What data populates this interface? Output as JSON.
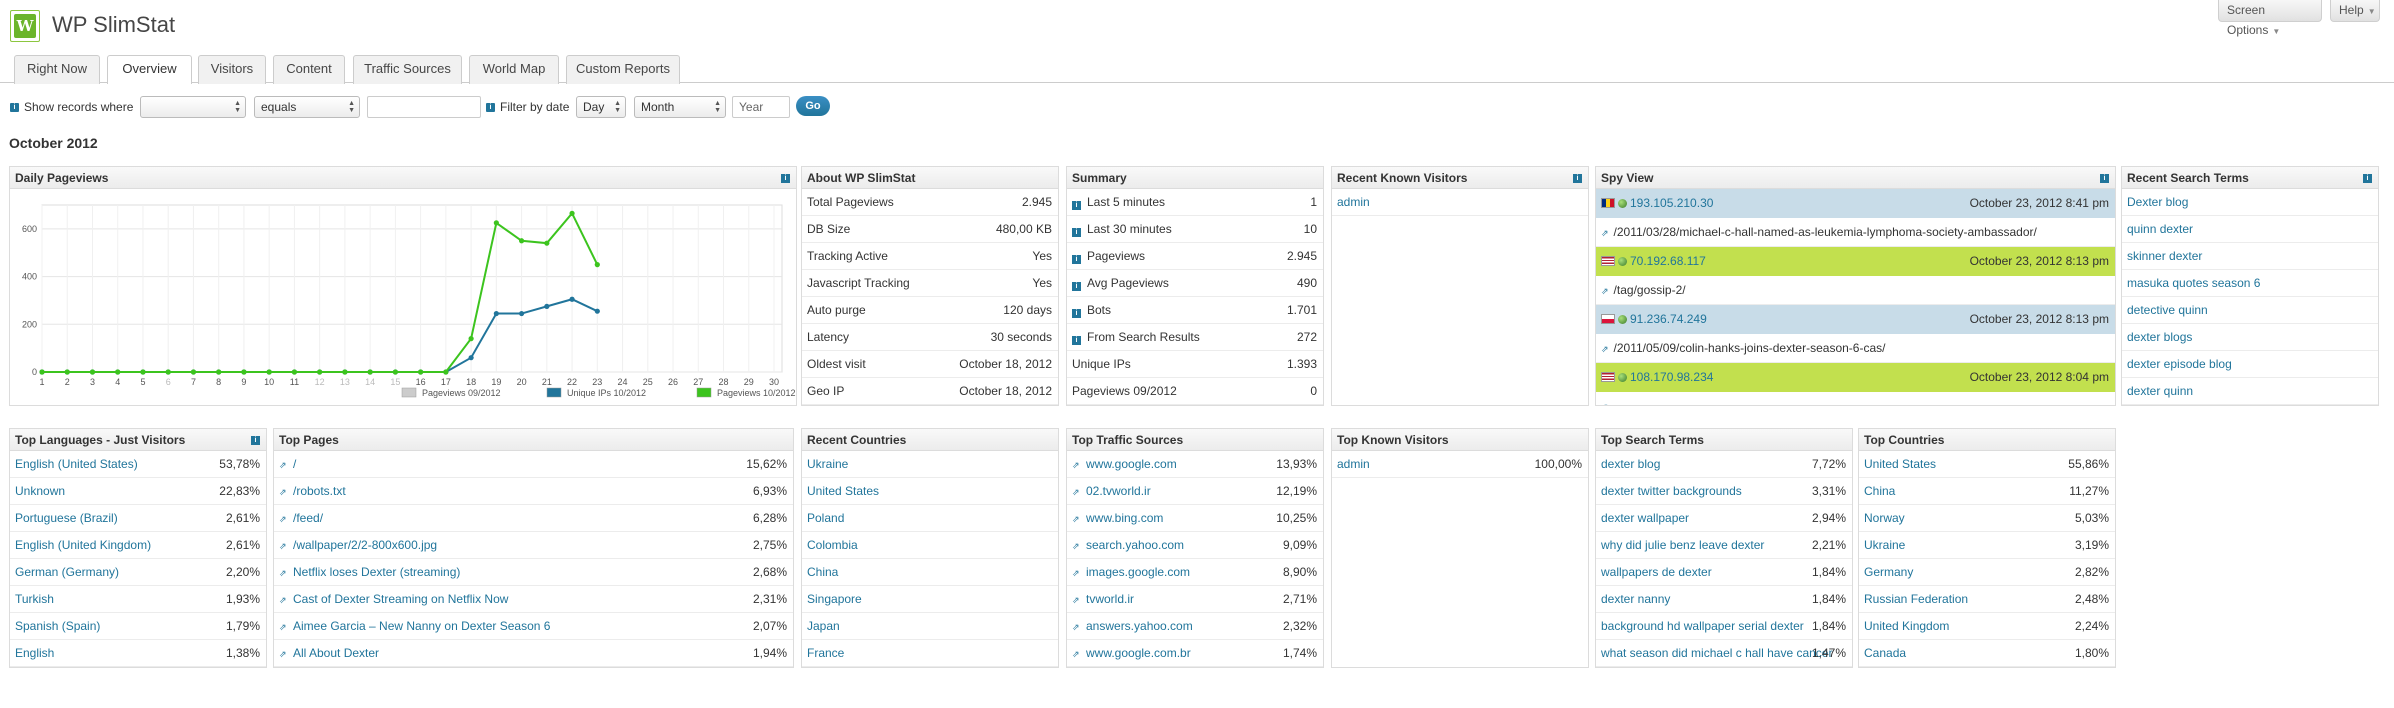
{
  "app": {
    "title": "WP SlimStat",
    "logo_letter": "W"
  },
  "top_buttons": {
    "screen_options": "Screen Options",
    "help": "Help"
  },
  "tabs": [
    "Right Now",
    "Overview",
    "Visitors",
    "Content",
    "Traffic Sources",
    "World Map",
    "Custom Reports"
  ],
  "active_tab": "Overview",
  "filter": {
    "show_records_label": "Show records where",
    "field_value": "",
    "operator_value": "equals",
    "text_value": "",
    "filter_by_date_label": "Filter by date",
    "day": "Day",
    "month": "Month",
    "year_placeholder": "Year",
    "go": "Go"
  },
  "period": "October 2012",
  "daily_pageviews": {
    "title": "Daily Pageviews"
  },
  "chart_data": {
    "type": "line",
    "title": "Daily Pageviews",
    "x": [
      1,
      2,
      3,
      4,
      5,
      6,
      7,
      8,
      9,
      10,
      11,
      12,
      13,
      14,
      15,
      16,
      17,
      18,
      19,
      20,
      21,
      22,
      23,
      24,
      25,
      26,
      27,
      28,
      29,
      30
    ],
    "x_tick_labels": [
      "1",
      "2",
      "3",
      "4",
      "5",
      "6",
      "7",
      "8",
      "9",
      "10",
      "11",
      "12",
      "13",
      "14",
      "15",
      "16",
      "17",
      "18",
      "19",
      "20",
      "21",
      "22",
      "23",
      "24",
      "25",
      "26",
      "27",
      "28",
      "29",
      "30"
    ],
    "ylim": [
      0,
      700
    ],
    "y_ticks": [
      0,
      200,
      400,
      600
    ],
    "grid": true,
    "legend_position": "bottom-right",
    "series": [
      {
        "name": "Pageviews 09/2012",
        "color": "#cccccc",
        "x": [],
        "values": []
      },
      {
        "name": "Unique IPs 10/2012",
        "color": "#21759b",
        "x": [
          1,
          2,
          3,
          4,
          5,
          6,
          7,
          8,
          9,
          10,
          11,
          12,
          13,
          14,
          15,
          16,
          17,
          18,
          19,
          20,
          21,
          22,
          23
        ],
        "values": [
          0,
          0,
          0,
          0,
          0,
          0,
          0,
          0,
          0,
          0,
          0,
          0,
          0,
          0,
          0,
          0,
          0,
          60,
          245,
          245,
          275,
          305,
          255
        ]
      },
      {
        "name": "Pageviews 10/2012",
        "color": "#3cc41e",
        "x": [
          1,
          2,
          3,
          4,
          5,
          6,
          7,
          8,
          9,
          10,
          11,
          12,
          13,
          14,
          15,
          16,
          17,
          18,
          19,
          20,
          21,
          22,
          23
        ],
        "values": [
          0,
          0,
          0,
          0,
          0,
          0,
          0,
          0,
          0,
          0,
          0,
          0,
          0,
          0,
          0,
          0,
          0,
          140,
          625,
          550,
          540,
          665,
          450
        ]
      }
    ]
  },
  "about": {
    "title": "About WP SlimStat",
    "rows": [
      {
        "label": "Total Pageviews",
        "value": "2.945"
      },
      {
        "label": "DB Size",
        "value": "480,00 KB"
      },
      {
        "label": "Tracking Active",
        "value": "Yes"
      },
      {
        "label": "Javascript Tracking",
        "value": "Yes"
      },
      {
        "label": "Auto purge",
        "value": "120 days"
      },
      {
        "label": "Latency",
        "value": "30 seconds"
      },
      {
        "label": "Oldest visit",
        "value": "October 18, 2012"
      },
      {
        "label": "Geo IP",
        "value": "October 18, 2012"
      }
    ]
  },
  "summary": {
    "title": "Summary",
    "rows": [
      {
        "label": "Last 5 minutes",
        "value": "1",
        "info": true
      },
      {
        "label": "Last 30 minutes",
        "value": "10",
        "info": true
      },
      {
        "label": "Pageviews",
        "value": "2.945",
        "info": true
      },
      {
        "label": "Avg Pageviews",
        "value": "490",
        "info": true
      },
      {
        "label": "Bots",
        "value": "1.701",
        "info": true
      },
      {
        "label": "From Search Results",
        "value": "272",
        "info": true
      },
      {
        "label": "Unique IPs",
        "value": "1.393",
        "info": false
      },
      {
        "label": "Pageviews 09/2012",
        "value": "0",
        "info": false
      }
    ]
  },
  "recent_known_visitors": {
    "title": "Recent Known Visitors",
    "rows": [
      "admin"
    ]
  },
  "spy_view": {
    "title": "Spy View",
    "entries": [
      {
        "ip": "193.105.210.30",
        "time": "October 23, 2012 8:41 pm",
        "url": "/2011/03/28/michael-c-hall-named-as-leukemia-lymphoma-society-ambassador/",
        "flag": "ro",
        "bg": "blue"
      },
      {
        "ip": "70.192.68.117",
        "time": "October 23, 2012 8:13 pm",
        "url": "/tag/gossip-2/",
        "flag": "us",
        "bg": "green"
      },
      {
        "ip": "91.236.74.249",
        "time": "October 23, 2012 8:13 pm",
        "url": "/2011/05/09/colin-hanks-joins-dexter-season-6-cas/",
        "flag": "pl",
        "bg": "blue"
      },
      {
        "ip": "108.170.98.234",
        "time": "October 23, 2012 8:04 pm",
        "url": "",
        "flag": "us",
        "bg": "green"
      }
    ]
  },
  "recent_search_terms": {
    "title": "Recent Search Terms",
    "rows": [
      "Dexter blog",
      "quinn dexter",
      "skinner dexter",
      "masuka quotes season 6",
      "detective quinn",
      "dexter blogs",
      "dexter episode blog",
      "dexter quinn"
    ]
  },
  "top_languages": {
    "title": "Top Languages - Just Visitors",
    "rows": [
      {
        "label": "English (United States)",
        "value": "53,78%"
      },
      {
        "label": "Unknown",
        "value": "22,83%"
      },
      {
        "label": "Portuguese (Brazil)",
        "value": "2,61%"
      },
      {
        "label": "English (United Kingdom)",
        "value": "2,61%"
      },
      {
        "label": "German (Germany)",
        "value": "2,20%"
      },
      {
        "label": "Turkish",
        "value": "1,93%"
      },
      {
        "label": "Spanish (Spain)",
        "value": "1,79%"
      },
      {
        "label": "English",
        "value": "1,38%"
      }
    ]
  },
  "top_pages": {
    "title": "Top Pages",
    "rows": [
      {
        "label": "/",
        "value": "15,62%"
      },
      {
        "label": "/robots.txt",
        "value": "6,93%"
      },
      {
        "label": "/feed/",
        "value": "6,28%"
      },
      {
        "label": "/wallpaper/2/2-800x600.jpg",
        "value": "2,75%"
      },
      {
        "label": "Netflix loses Dexter (streaming)",
        "value": "2,68%"
      },
      {
        "label": "Cast of Dexter Streaming on Netflix Now",
        "value": "2,31%"
      },
      {
        "label": "Aimee Garcia – New Nanny on Dexter Season 6",
        "value": "2,07%"
      },
      {
        "label": "All About Dexter",
        "value": "1,94%"
      }
    ]
  },
  "recent_countries": {
    "title": "Recent Countries",
    "rows": [
      "Ukraine",
      "United States",
      "Poland",
      "Colombia",
      "China",
      "Singapore",
      "Japan",
      "France"
    ]
  },
  "top_traffic_sources": {
    "title": "Top Traffic Sources",
    "rows": [
      {
        "label": "www.google.com",
        "value": "13,93%"
      },
      {
        "label": "02.tvworld.ir",
        "value": "12,19%"
      },
      {
        "label": "www.bing.com",
        "value": "10,25%"
      },
      {
        "label": "search.yahoo.com",
        "value": "9,09%"
      },
      {
        "label": "images.google.com",
        "value": "8,90%"
      },
      {
        "label": "tvworld.ir",
        "value": "2,71%"
      },
      {
        "label": "answers.yahoo.com",
        "value": "2,32%"
      },
      {
        "label": "www.google.com.br",
        "value": "1,74%"
      }
    ]
  },
  "top_known_visitors": {
    "title": "Top Known Visitors",
    "rows": [
      {
        "label": "admin",
        "value": "100,00%"
      }
    ]
  },
  "top_search_terms": {
    "title": "Top Search Terms",
    "rows": [
      {
        "label": "dexter blog",
        "value": "7,72%"
      },
      {
        "label": "dexter twitter backgrounds",
        "value": "3,31%"
      },
      {
        "label": "dexter wallpaper",
        "value": "2,94%"
      },
      {
        "label": "why did julie benz leave dexter",
        "value": "2,21%"
      },
      {
        "label": "wallpapers de dexter",
        "value": "1,84%"
      },
      {
        "label": "dexter nanny",
        "value": "1,84%"
      },
      {
        "label": "background hd wallpaper serial dexter",
        "value": "1,84%"
      },
      {
        "label": "what season did michael c hall have cancer",
        "value": "1,47%"
      }
    ]
  },
  "top_countries": {
    "title": "Top Countries",
    "rows": [
      {
        "label": "United States",
        "value": "55,86%"
      },
      {
        "label": "China",
        "value": "11,27%"
      },
      {
        "label": "Norway",
        "value": "5,03%"
      },
      {
        "label": "Ukraine",
        "value": "3,19%"
      },
      {
        "label": "Germany",
        "value": "2,82%"
      },
      {
        "label": "Russian Federation",
        "value": "2,48%"
      },
      {
        "label": "United Kingdom",
        "value": "2,24%"
      },
      {
        "label": "Canada",
        "value": "1,80%"
      }
    ]
  },
  "colors": {
    "link": "#21759b",
    "spy_blue": "#c8dce8",
    "spy_green": "#c2e04e"
  }
}
